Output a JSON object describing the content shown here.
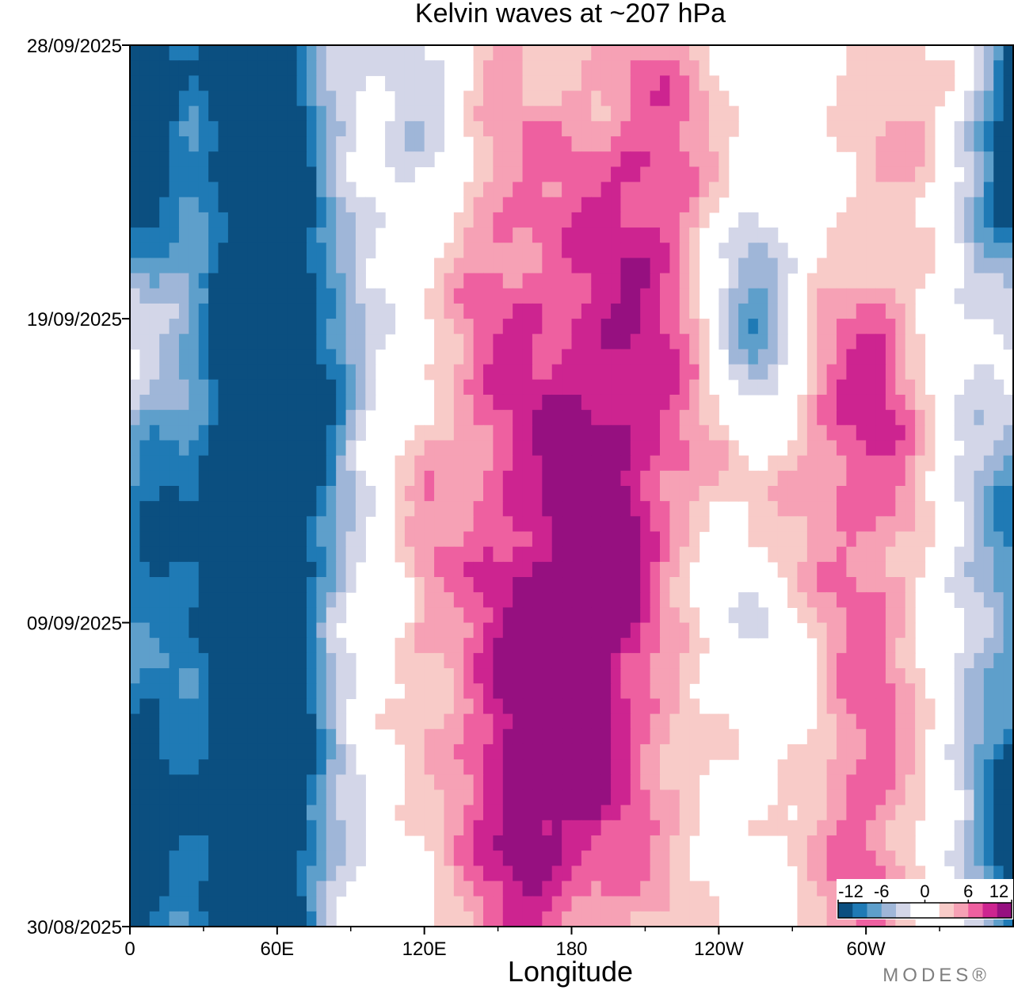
{
  "chart_data": {
    "type": "heatmap",
    "title": "Kelvin waves at ~207 hPa",
    "xlabel": "Longitude",
    "ylabel": "",
    "x_ticks": [
      {
        "lon": 0,
        "label": "0"
      },
      {
        "lon": 60,
        "label": "60E"
      },
      {
        "lon": 120,
        "label": "120E"
      },
      {
        "lon": 180,
        "label": "180"
      },
      {
        "lon": 240,
        "label": "120W"
      },
      {
        "lon": 300,
        "label": "60W"
      }
    ],
    "x_minor_ticks": [
      30,
      90,
      150,
      210,
      270,
      330
    ],
    "xlim": [
      0,
      360
    ],
    "y_ticks": [
      {
        "day": 0,
        "label": "30/08/2025"
      },
      {
        "day": 10,
        "label": "09/09/2025"
      },
      {
        "day": 20,
        "label": "19/09/2025"
      },
      {
        "day": 29,
        "label": "28/09/2025"
      }
    ],
    "ylim": [
      0,
      29
    ],
    "colorbar": {
      "labels": [
        "-12",
        "-6",
        "0",
        "6",
        "12"
      ],
      "levels": [
        -12,
        -10,
        -8,
        -6,
        -4,
        -2,
        0,
        2,
        4,
        6,
        8,
        10,
        12
      ],
      "colors": [
        "#0b4f80",
        "#1f7ab5",
        "#5e9fcb",
        "#9fb6d8",
        "#d3d6e8",
        "#ffffff",
        "#ffffff",
        "#f8cbc8",
        "#f6a1b5",
        "#ee60a0",
        "#cd2490",
        "#961080"
      ]
    },
    "anomalies": [
      {
        "sign": "neg",
        "lon": 50,
        "day": 14.5,
        "amp": 14.5,
        "sx": 22,
        "sy": 30
      },
      {
        "sign": "neg",
        "lon": 58,
        "day": 5,
        "amp": 4,
        "sx": 12,
        "sy": 6
      },
      {
        "sign": "neg",
        "lon": 58,
        "day": 25,
        "amp": 3,
        "sx": 12,
        "sy": 4
      },
      {
        "sign": "neg",
        "lon": 70,
        "day": 16.5,
        "amp": 3,
        "sx": 10,
        "sy": 4
      },
      {
        "sign": "neg",
        "lon": 6,
        "day": 27,
        "amp": 8.5,
        "sx": 10,
        "sy": 3
      },
      {
        "sign": "neg",
        "lon": 10,
        "day": 12.5,
        "amp": 6,
        "sx": 10,
        "sy": 4
      },
      {
        "sign": "neg",
        "lon": 5,
        "day": 1.5,
        "amp": 8.5,
        "sx": 10,
        "sy": 3
      },
      {
        "sign": "neg",
        "lon": 255,
        "day": 20,
        "amp": 11,
        "sx": 14,
        "sy": 3
      },
      {
        "sign": "neg",
        "lon": 244,
        "day": 10,
        "amp": 5,
        "sx": 26,
        "sy": 3
      },
      {
        "sign": "neg",
        "lon": 355,
        "day": 25,
        "amp": 8.5,
        "sx": 18,
        "sy": 4
      },
      {
        "sign": "neg",
        "lon": 350,
        "day": 13,
        "amp": 6,
        "sx": 14,
        "sy": 3
      },
      {
        "sign": "neg",
        "lon": 355,
        "day": 4,
        "amp": 7,
        "sx": 15,
        "sy": 3
      },
      {
        "sign": "neg",
        "lon": 120,
        "day": 26,
        "amp": 4,
        "sx": 14,
        "sy": 3
      },
      {
        "sign": "neg",
        "lon": 86,
        "day": 18,
        "amp": 4.5,
        "sx": 10,
        "sy": 2
      },
      {
        "sign": "pos",
        "lon": 180,
        "day": 8.5,
        "amp": 10,
        "sx": 38,
        "sy": 7
      },
      {
        "sign": "pos",
        "lon": 196,
        "day": 11,
        "amp": 3,
        "sx": 8,
        "sy": 1.5
      },
      {
        "sign": "pos",
        "lon": 186,
        "day": 7,
        "amp": 2,
        "sx": 7,
        "sy": 1.5
      },
      {
        "sign": "pos",
        "lon": 160,
        "day": 3,
        "amp": 5,
        "sx": 16,
        "sy": 4
      },
      {
        "sign": "pos",
        "lon": 198,
        "day": 21,
        "amp": 7,
        "sx": 30,
        "sy": 7
      },
      {
        "sign": "pos",
        "lon": 218,
        "day": 26,
        "amp": 3,
        "sx": 14,
        "sy": 3
      },
      {
        "sign": "pos",
        "lon": 145,
        "day": 23,
        "amp": 4,
        "sx": 16,
        "sy": 6
      },
      {
        "sign": "pos",
        "lon": 285,
        "day": 16,
        "amp": 6,
        "sx": 32,
        "sy": 5
      },
      {
        "sign": "pos",
        "lon": 305,
        "day": 18.5,
        "amp": 3.5,
        "sx": 12,
        "sy": 3
      },
      {
        "sign": "pos",
        "lon": 300,
        "day": 3.5,
        "amp": 7,
        "sx": 16,
        "sy": 6
      },
      {
        "sign": "pos",
        "lon": 328,
        "day": 27,
        "amp": 5.5,
        "sx": 20,
        "sy": 2.5
      },
      {
        "sign": "pos",
        "lon": 25,
        "day": 21.5,
        "amp": 3.5,
        "sx": 12,
        "sy": 3
      },
      {
        "sign": "pos",
        "lon": 120,
        "day": 12.5,
        "amp": 2.5,
        "sx": 6,
        "sy": 3
      },
      {
        "sign": "pos",
        "lon": 0,
        "day": 19,
        "amp": 2.5,
        "sx": 8,
        "sy": 3
      }
    ]
  },
  "branding": {
    "watermark": "MODES®"
  }
}
